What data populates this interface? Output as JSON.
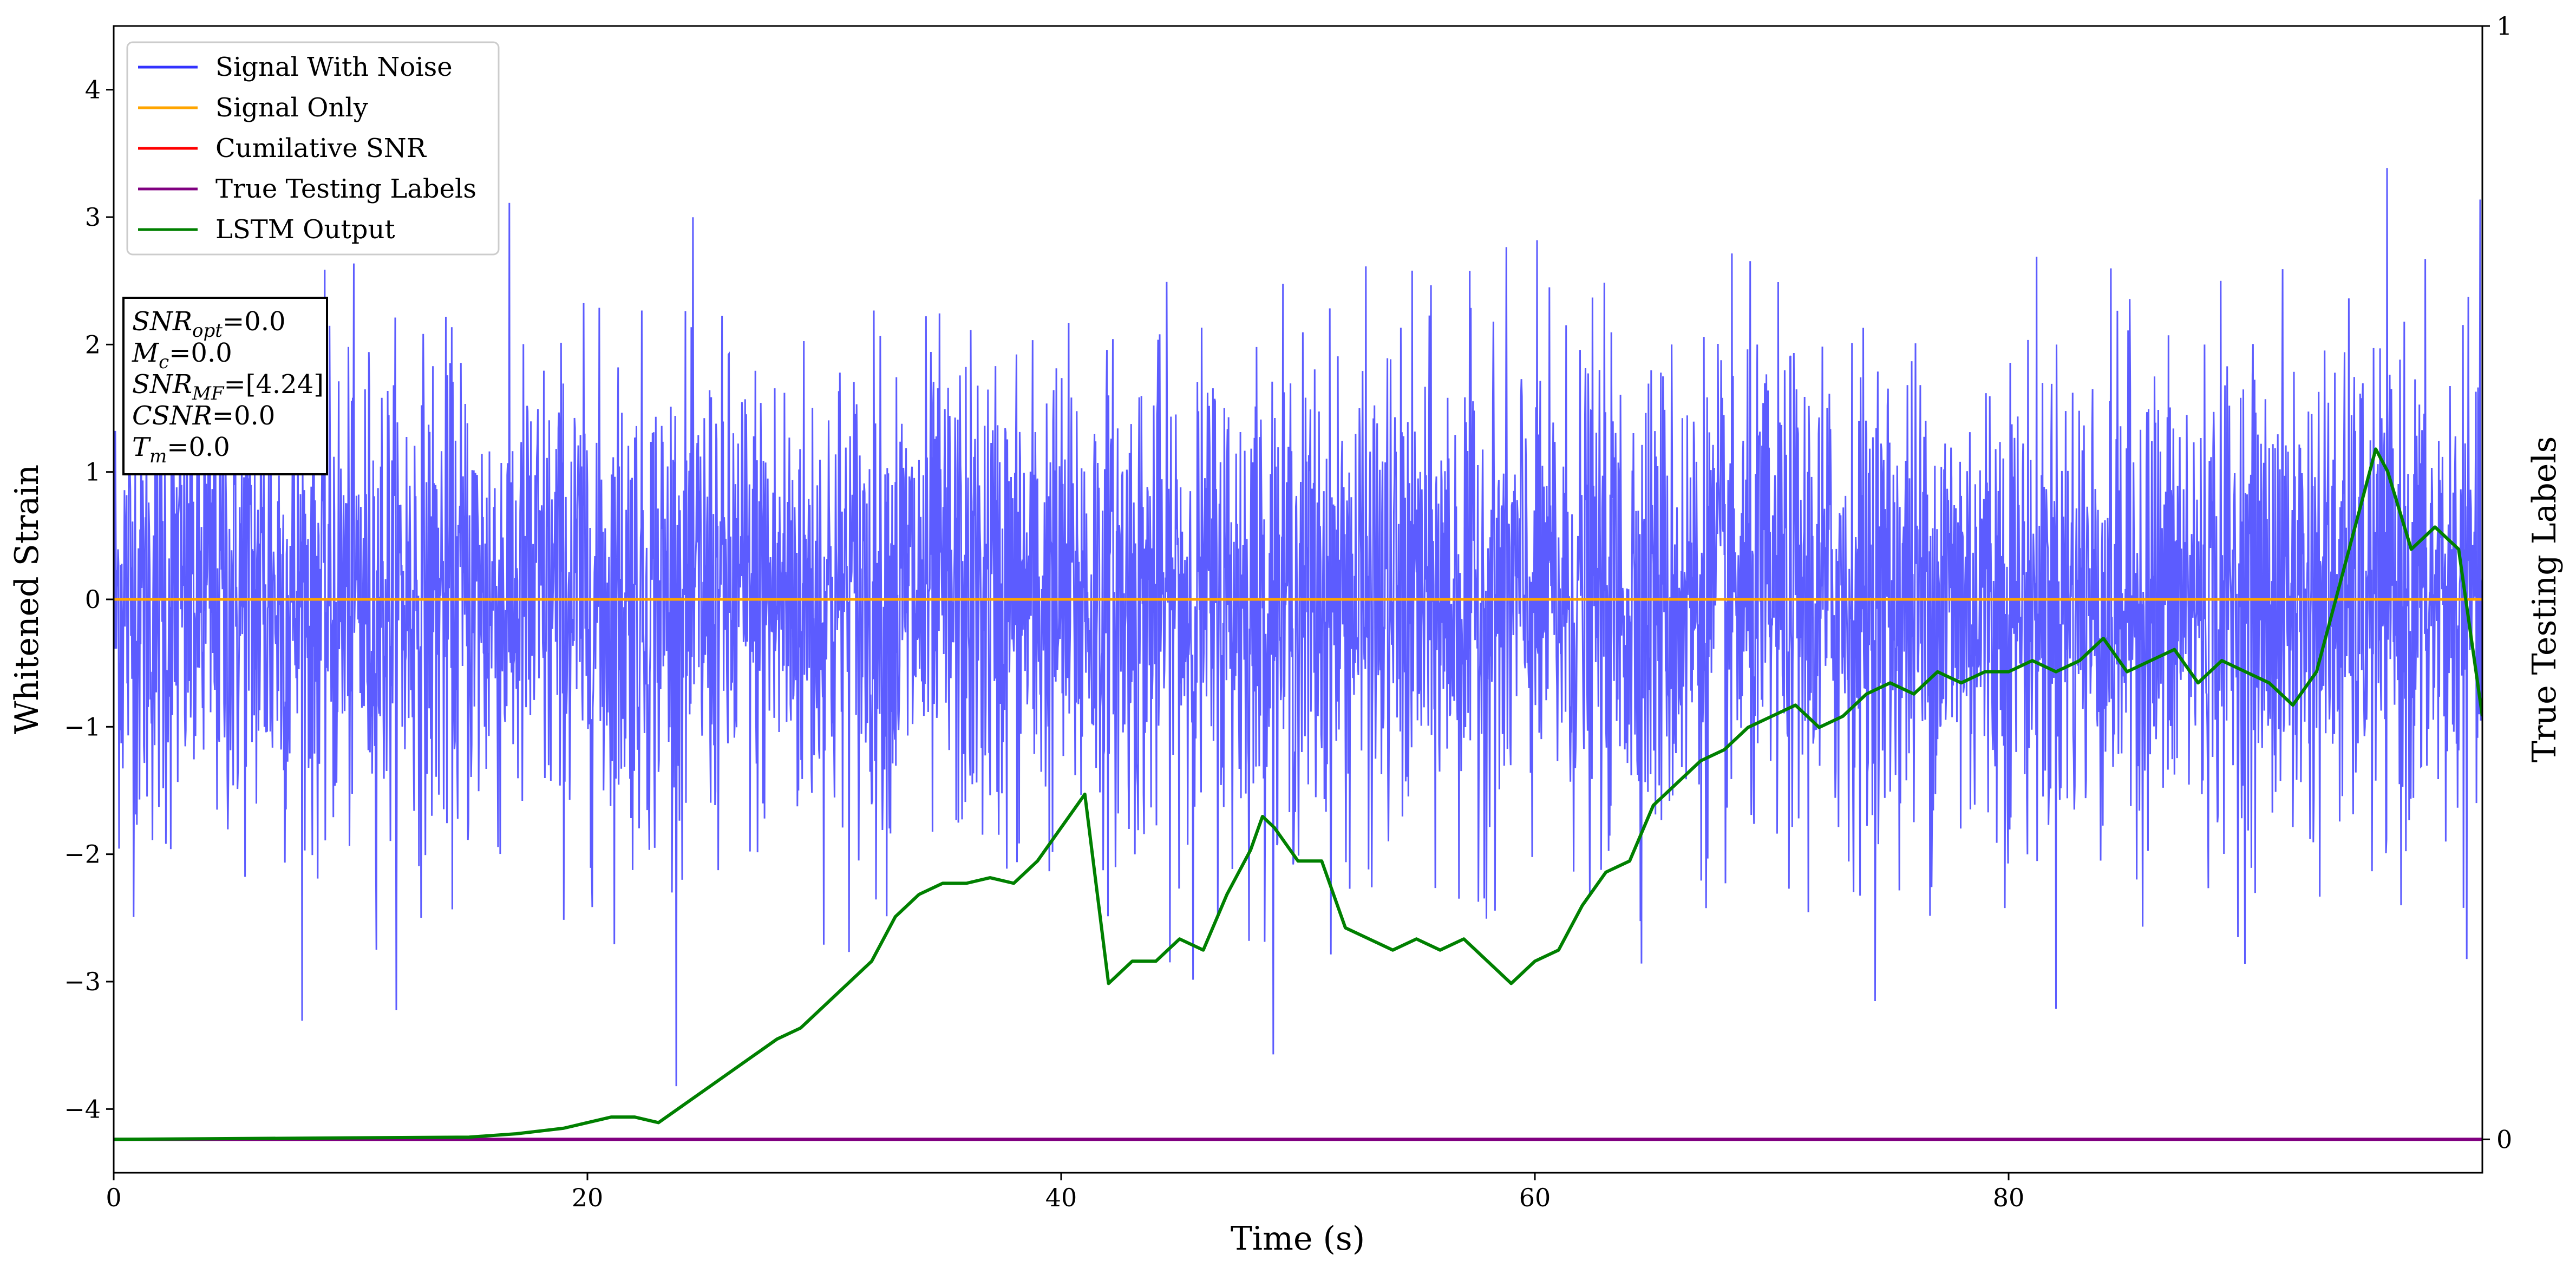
{
  "chart_data": {
    "type": "line",
    "xlabel": "Time (s)",
    "ylabel": "Whitened Strain",
    "y2label": "True Testing Labels",
    "xlim": [
      0,
      100
    ],
    "ylim": [
      -4.5,
      4.5
    ],
    "y2lim": [
      -0.03,
      1.0
    ],
    "grid": false,
    "legend_position": "top-left",
    "x_ticks": [
      "0",
      "20",
      "40",
      "60",
      "80"
    ],
    "y_ticks": [
      "4",
      "3",
      "2",
      "1",
      "0",
      "−1",
      "−2",
      "−3",
      "−4"
    ],
    "y2_ticks": [
      "0",
      "1"
    ],
    "legend": [
      {
        "label": "Signal With Noise",
        "color": "#3333ff"
      },
      {
        "label": "Signal Only",
        "color": "#ffa500"
      },
      {
        "label": "Cumilative SNR",
        "color": "#ff0000"
      },
      {
        "label": "True Testing Labels",
        "color": "#800080"
      },
      {
        "label": "LSTM Output",
        "color": "#008000"
      }
    ],
    "info_box": [
      {
        "base": "SNR",
        "sub": "opt",
        "rest": "=0.0"
      },
      {
        "base": "M",
        "sub": "c",
        "rest": "=0.0"
      },
      {
        "base": "SNR",
        "sub": "MF",
        "rest": "=[4.24]"
      },
      {
        "base": "CSNR",
        "sub": "",
        "rest": "=0.0"
      },
      {
        "base": "T",
        "sub": "m",
        "rest": "=0.0"
      }
    ],
    "series": [
      {
        "name": "Signal With Noise",
        "axis": "left",
        "noise_std": 0.95,
        "x_range": [
          0,
          100
        ]
      },
      {
        "name": "Signal Only",
        "axis": "left",
        "x": [
          0,
          100
        ],
        "values": [
          0,
          0
        ]
      },
      {
        "name": "True Testing Labels",
        "axis": "right",
        "x": [
          0,
          100
        ],
        "values": [
          0,
          0
        ]
      },
      {
        "name": "LSTM Output",
        "axis": "right",
        "x": [
          0,
          15,
          17,
          19,
          20,
          21,
          22,
          23,
          24,
          25,
          26,
          27,
          28,
          29,
          30,
          31,
          32,
          33,
          34,
          35,
          36,
          37,
          38,
          39,
          40,
          41,
          42,
          43,
          44,
          45,
          46,
          47,
          48,
          48.5,
          49,
          50,
          51,
          52,
          53,
          54,
          55,
          56,
          57,
          58,
          59,
          60,
          61,
          62,
          63,
          64,
          65,
          66,
          67,
          68,
          69,
          70,
          71,
          72,
          73,
          74,
          75,
          76,
          77,
          78,
          79,
          80,
          81,
          82,
          83,
          84,
          85,
          86,
          87,
          88,
          89,
          90,
          91,
          92,
          93,
          94,
          95,
          95.5,
          96,
          97,
          98,
          99,
          100
        ],
        "values": [
          0,
          0.002,
          0.005,
          0.01,
          0.015,
          0.02,
          0.02,
          0.015,
          0.03,
          0.045,
          0.06,
          0.075,
          0.09,
          0.1,
          0.12,
          0.14,
          0.16,
          0.2,
          0.22,
          0.23,
          0.23,
          0.235,
          0.23,
          0.25,
          0.28,
          0.31,
          0.14,
          0.16,
          0.16,
          0.18,
          0.17,
          0.22,
          0.26,
          0.29,
          0.28,
          0.25,
          0.25,
          0.19,
          0.18,
          0.17,
          0.18,
          0.17,
          0.18,
          0.16,
          0.14,
          0.16,
          0.17,
          0.21,
          0.24,
          0.25,
          0.3,
          0.32,
          0.34,
          0.35,
          0.37,
          0.38,
          0.39,
          0.37,
          0.38,
          0.4,
          0.41,
          0.4,
          0.42,
          0.41,
          0.42,
          0.42,
          0.43,
          0.42,
          0.43,
          0.45,
          0.42,
          0.43,
          0.44,
          0.41,
          0.43,
          0.42,
          0.41,
          0.39,
          0.42,
          0.5,
          0.58,
          0.62,
          0.6,
          0.53,
          0.55,
          0.53,
          0.38
        ]
      }
    ]
  }
}
